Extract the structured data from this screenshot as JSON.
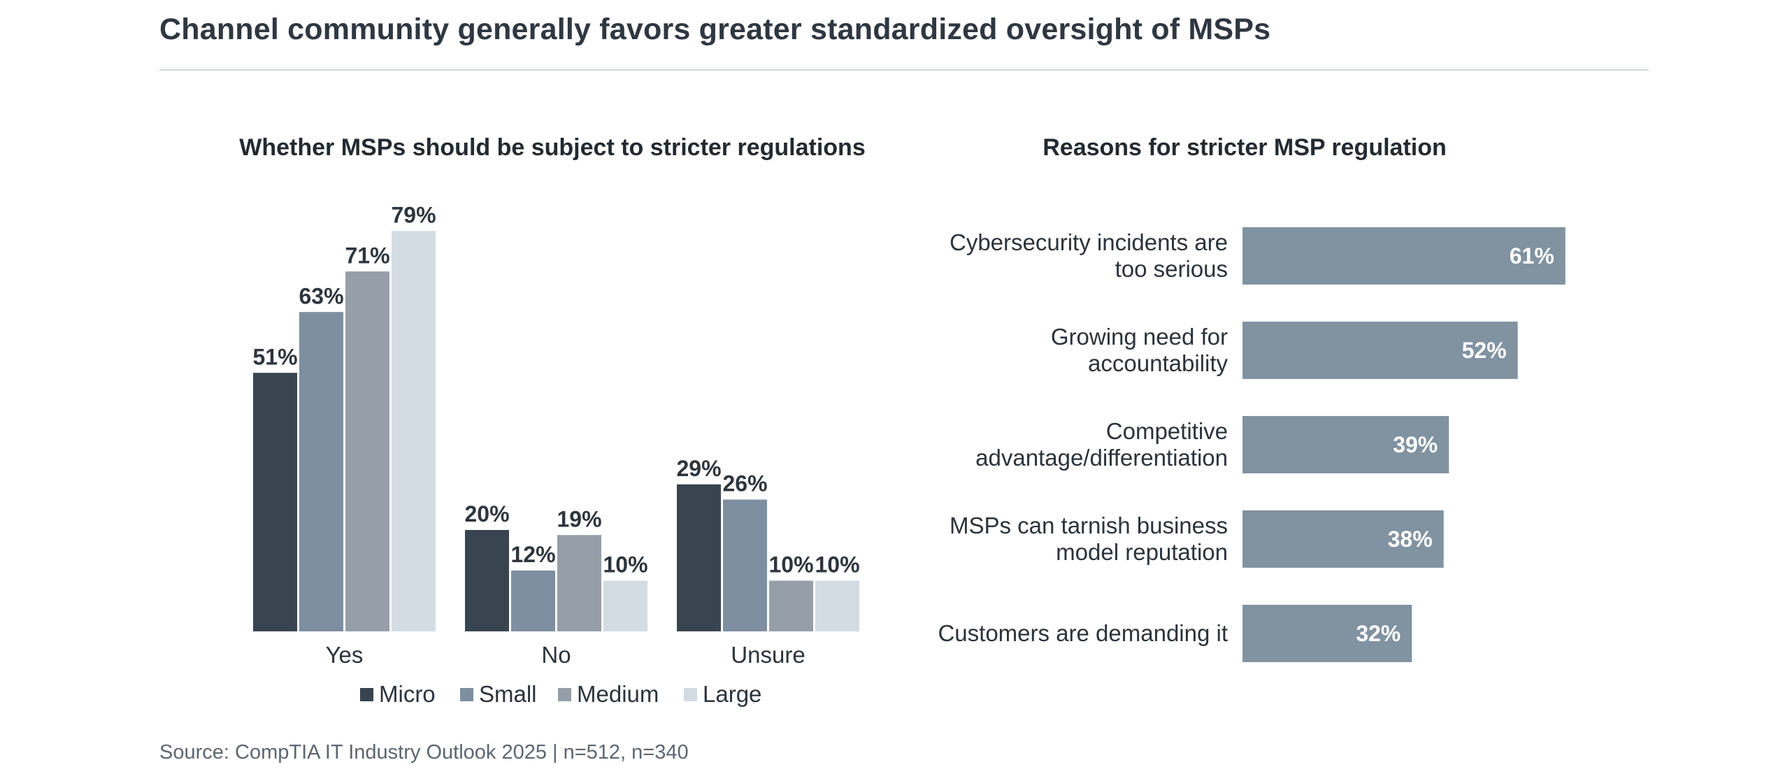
{
  "page": {
    "title": "Channel community generally favors greater standardized oversight of MSPs",
    "source": "Source: CompTIA IT Industry Outlook 2025 | n=512, n=340"
  },
  "colors": {
    "micro": "#38444f",
    "small": "#7d8fa0",
    "medium": "#969fa8",
    "large": "#d3dce3",
    "hbar": "#8192a1",
    "label_dark": "#2d353d",
    "label_light": "#ffffff"
  },
  "chart_data": [
    {
      "type": "bar",
      "title": "Whether MSPs should be subject to stricter regulations",
      "categories": [
        "Yes",
        "No",
        "Unsure"
      ],
      "series": [
        {
          "name": "Micro",
          "values": [
            51,
            20,
            29
          ],
          "labels": [
            "51%",
            "20%",
            "29%"
          ]
        },
        {
          "name": "Small",
          "values": [
            63,
            12,
            26
          ],
          "labels": [
            "63%",
            "12%",
            "26%"
          ]
        },
        {
          "name": "Medium",
          "values": [
            71,
            19,
            10
          ],
          "labels": [
            "71%",
            "19%",
            "10%"
          ]
        },
        {
          "name": "Large",
          "values": [
            79,
            10,
            10
          ],
          "labels": [
            "79%",
            "10%",
            "10%"
          ]
        }
      ],
      "ylim": [
        0,
        80
      ],
      "xlabel": "",
      "ylabel": "",
      "grid": false,
      "legend": "bottom-center"
    },
    {
      "type": "bar",
      "orientation": "horizontal",
      "title": "Reasons for stricter MSP regulation",
      "categories": [
        [
          "Cybersecurity incidents are",
          "too serious"
        ],
        [
          "Growing need for",
          "accountability"
        ],
        [
          "Competitive",
          "advantage/differentiation"
        ],
        [
          "MSPs can tarnish business",
          "model reputation"
        ],
        [
          "Customers are demanding it"
        ]
      ],
      "values": [
        61,
        52,
        39,
        38,
        32
      ],
      "labels": [
        "61%",
        "52%",
        "39%",
        "38%",
        "32%"
      ],
      "xlim": [
        0,
        100
      ],
      "grid": false
    }
  ]
}
